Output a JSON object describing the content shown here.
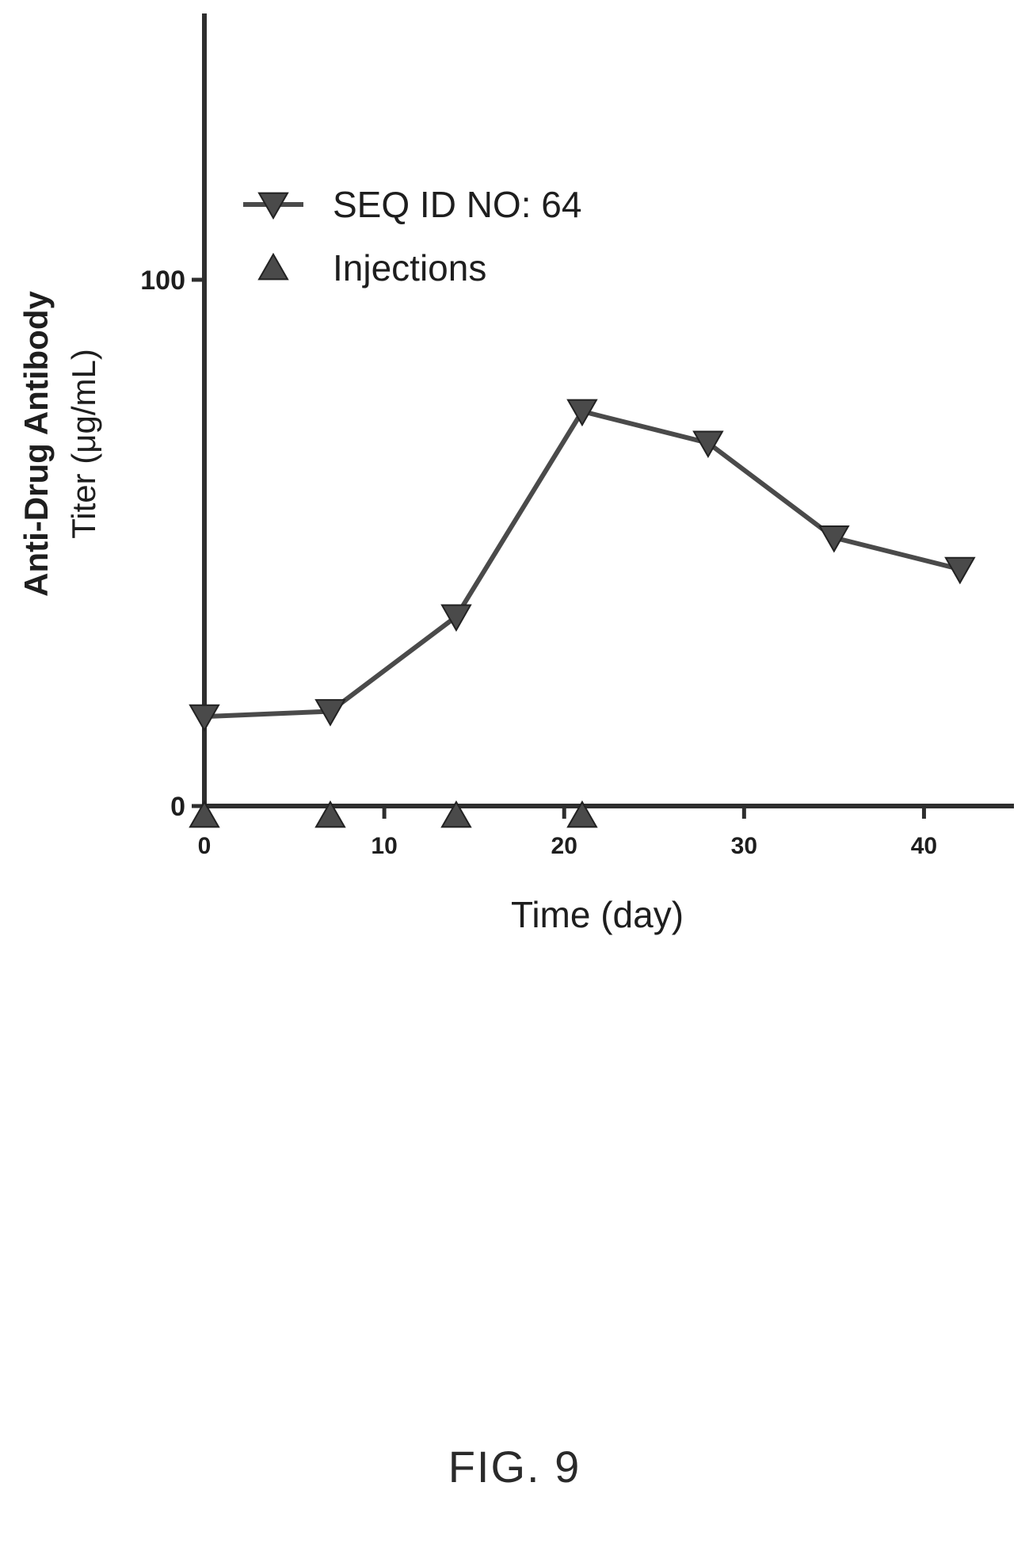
{
  "chart_data": {
    "type": "line",
    "xlabel": "Time (day)",
    "ylabel": "Anti-Drug Antibody",
    "ylabel_line2": "Titer (μg/mL)",
    "xlim": [
      0,
      45
    ],
    "ylim": [
      0,
      100
    ],
    "x_ticks": [
      0,
      10,
      20,
      30,
      40
    ],
    "y_ticks": [
      0,
      100
    ],
    "grid": false,
    "legend_position": "top-left",
    "series": [
      {
        "name": "SEQ ID NO:  64",
        "marker": "triangle-down",
        "line": true,
        "color": "#4a4a4a",
        "x": [
          0,
          7,
          14,
          21,
          28,
          35,
          42
        ],
        "y": [
          17,
          18,
          36,
          75,
          69,
          51,
          45
        ]
      },
      {
        "name": "Injections",
        "marker": "triangle-up",
        "line": false,
        "color": "#4a4a4a",
        "x": [
          0,
          7,
          14,
          21
        ],
        "y": [
          0,
          0,
          0,
          0
        ]
      }
    ]
  },
  "figure_label": "FIG. 9"
}
